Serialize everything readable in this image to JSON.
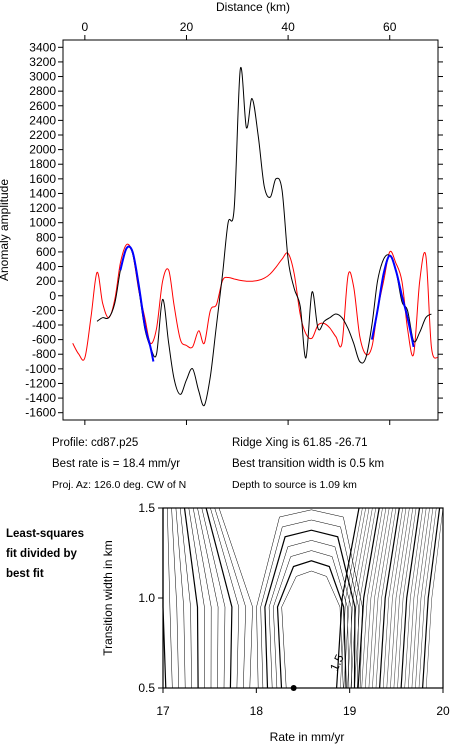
{
  "chart_data": [
    {
      "type": "line",
      "title": "",
      "xlabel": "Distance (km)",
      "ylabel": "Anomaly amplitude",
      "xlim": [
        -4.3,
        69.5
      ],
      "ylim": [
        -1700,
        3500
      ],
      "x_ticks": [
        0,
        20,
        40,
        60
      ],
      "y_ticks": [
        3400,
        3200,
        3000,
        2800,
        2600,
        2400,
        2200,
        2000,
        1800,
        1600,
        1400,
        1200,
        1000,
        800,
        600,
        400,
        200,
        0,
        -200,
        -400,
        -600,
        -800,
        -1000,
        -1200,
        -1400,
        -1600
      ],
      "grid": false,
      "series": [
        {
          "name": "",
          "color": "#ff0000",
          "x": [
            -2.4,
            -1.2,
            0,
            1.2,
            2.4,
            3.5,
            4.7,
            5.9,
            7.0,
            8.2,
            9.4,
            10.6,
            11.8,
            12.9,
            14.1,
            15.3,
            16.5,
            17.6,
            18.8,
            20.0,
            21.2,
            22.4,
            23.5,
            24.7,
            25.9,
            27.1,
            28.2,
            29.4,
            30.6,
            31.8,
            32.9,
            34.1,
            35.3,
            36.5,
            37.6,
            38.8,
            40.0,
            41.2,
            42.4,
            43.5,
            44.7,
            45.9,
            47.1,
            48.2,
            49.4,
            50.6,
            51.8,
            52.9,
            54.1,
            55.3,
            56.5,
            57.6,
            58.8,
            60.0,
            61.2,
            62.4,
            63.5,
            64.7,
            65.9,
            67.1,
            68.2,
            69.4
          ],
          "values": [
            -650,
            -800,
            -850,
            -300,
            320,
            -100,
            -300,
            -50,
            450,
            700,
            580,
            80,
            -300,
            -650,
            -450,
            200,
            350,
            -150,
            -600,
            -680,
            -700,
            -480,
            -650,
            -200,
            -120,
            210,
            250,
            230,
            210,
            200,
            200,
            210,
            240,
            300,
            390,
            500,
            580,
            300,
            -260,
            -520,
            -580,
            -400,
            -380,
            -440,
            -560,
            -650,
            280,
            120,
            -550,
            -800,
            -700,
            -200,
            200,
            600,
            450,
            200,
            -450,
            -800,
            200,
            550,
            -700,
            -850
          ]
        },
        {
          "name": "",
          "color": "#000000",
          "x": [
            2.4,
            3.5,
            4.7,
            5.9,
            7.0,
            8.2,
            9.4,
            10.6,
            11.8,
            12.9,
            14.1,
            15.3,
            16.5,
            17.6,
            18.8,
            20.0,
            21.2,
            22.4,
            23.5,
            24.7,
            25.9,
            27.1,
            28.2,
            29.4,
            30.6,
            31.8,
            32.9,
            34.1,
            35.3,
            36.5,
            37.6,
            38.8,
            40.0,
            41.2,
            42.4,
            43.5,
            44.7,
            45.9,
            47.1,
            48.2,
            49.4,
            50.6,
            51.8,
            52.9,
            54.1,
            55.3,
            56.5,
            57.6,
            58.8,
            60.0,
            61.2,
            62.4,
            63.5,
            64.7,
            65.9,
            67.1,
            68.2
          ],
          "values": [
            -350,
            -300,
            -300,
            -100,
            350,
            650,
            580,
            100,
            -450,
            -700,
            -800,
            -50,
            -650,
            -1150,
            -1350,
            -1150,
            -1000,
            -1300,
            -1500,
            -1100,
            -400,
            300,
            1000,
            1200,
            3100,
            2300,
            2700,
            2200,
            1500,
            1350,
            1600,
            1450,
            500,
            100,
            -150,
            -850,
            50,
            -450,
            -350,
            -300,
            -250,
            -300,
            -450,
            -650,
            -900,
            -850,
            -400,
            200,
            500,
            550,
            350,
            -80,
            -200,
            -620,
            -500,
            -300,
            -250
          ]
        },
        {
          "name": "",
          "color": "#0000ff",
          "segments": [
            {
              "x": [
                7.0,
                8.2,
                9.4,
                10.6,
                11.8,
                12.9,
                13.5
              ],
              "values": [
                350,
                650,
                600,
                150,
                -400,
                -700,
                -900
              ]
            },
            {
              "x": [
                56.5,
                57.6,
                58.8,
                60.0,
                61.2,
                62.4,
                63.5,
                64.7
              ],
              "values": [
                -600,
                -200,
                300,
                550,
                350,
                0,
                -300,
                -700
              ]
            }
          ]
        }
      ]
    },
    {
      "type": "contour",
      "title": "",
      "xlabel": "Rate in mm/yr",
      "ylabel": "Transition width in km",
      "xlim": [
        17,
        20
      ],
      "ylim": [
        0.5,
        1.5
      ],
      "x_ticks": [
        17,
        18,
        19,
        20
      ],
      "y_ticks": [
        0.5,
        1.0,
        1.5
      ],
      "contour_label": "1.5",
      "best_fit_point": {
        "rate": 18.4,
        "width": 0.5
      },
      "grid": false
    }
  ],
  "info": {
    "profile": "Profile: cd87.p25",
    "best_rate": "Best rate is = 18.4 mm/yr",
    "proj_az": "Proj. Az: 126.0 deg. CW of N",
    "ridge_xing": "Ridge Xing is 61.85 -26.71",
    "best_width": "Best transition width is 0.5 km",
    "depth": "Depth to source is   1.09 km"
  },
  "side_label": [
    "Least-squares",
    "fit divided by",
    "best fit"
  ]
}
